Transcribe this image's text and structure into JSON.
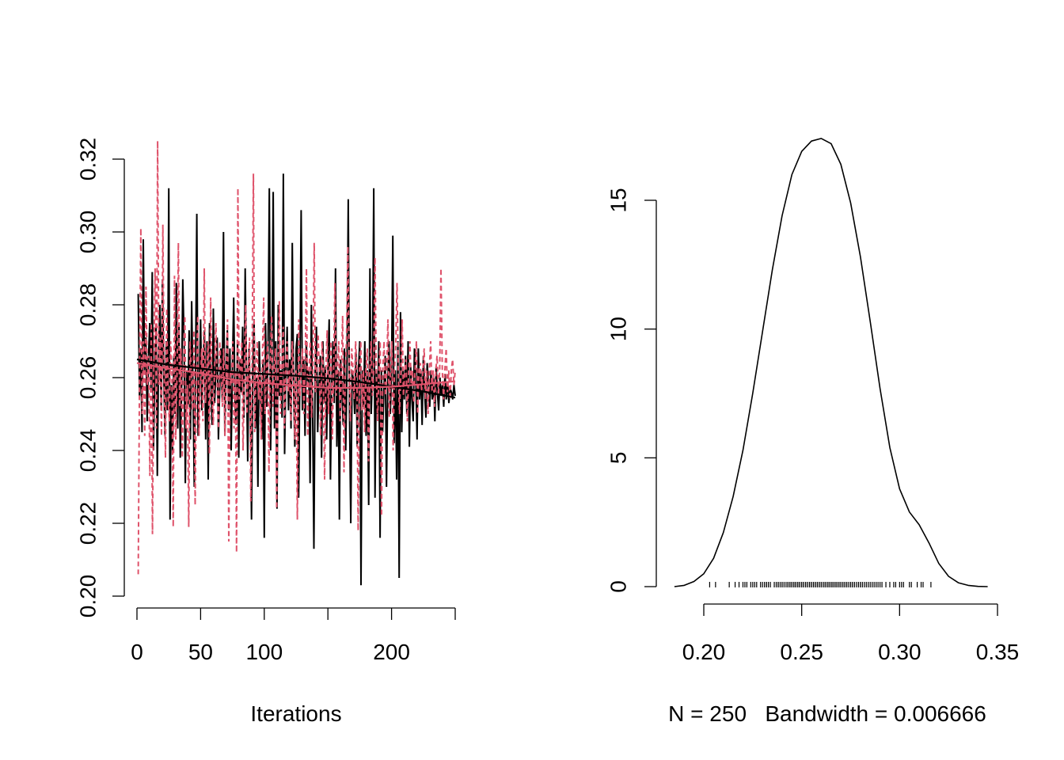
{
  "chart_data": [
    {
      "type": "line",
      "title": "",
      "xlabel": "Iterations",
      "ylabel": "",
      "xlim": [
        0,
        250
      ],
      "ylim": [
        0.2,
        0.32
      ],
      "x_ticks": [
        0,
        50,
        100,
        150,
        200,
        250
      ],
      "x_tick_labels": [
        "0",
        "50",
        "100",
        "",
        "200",
        ""
      ],
      "y_ticks": [
        0.2,
        0.22,
        0.24,
        0.26,
        0.28,
        0.3,
        0.32
      ],
      "y_tick_labels": [
        "0.20",
        "0.22",
        "0.24",
        "0.26",
        "0.28",
        "0.30",
        "0.32"
      ],
      "n_iterations": 250,
      "series": [
        {
          "color": "#000000",
          "line_style": "solid",
          "values": [
            0.283,
            0.255,
            0.268,
            0.245,
            0.298,
            0.262,
            0.271,
            0.248,
            0.265,
            0.275,
            0.257,
            0.289,
            0.24,
            0.262,
            0.274,
            0.233,
            0.266,
            0.28,
            0.251,
            0.287,
            0.262,
            0.244,
            0.27,
            0.251,
            0.312,
            0.221,
            0.258,
            0.24,
            0.266,
            0.25,
            0.286,
            0.246,
            0.275,
            0.238,
            0.255,
            0.287,
            0.27,
            0.231,
            0.262,
            0.252,
            0.273,
            0.243,
            0.281,
            0.257,
            0.23,
            0.262,
            0.305,
            0.244,
            0.258,
            0.276,
            0.251,
            0.264,
            0.273,
            0.243,
            0.27,
            0.232,
            0.275,
            0.26,
            0.247,
            0.279,
            0.253,
            0.262,
            0.271,
            0.243,
            0.257,
            0.268,
            0.254,
            0.3,
            0.244,
            0.262,
            0.273,
            0.251,
            0.268,
            0.24,
            0.262,
            0.282,
            0.253,
            0.247,
            0.27,
            0.238,
            0.265,
            0.256,
            0.274,
            0.249,
            0.29,
            0.262,
            0.237,
            0.268,
            0.255,
            0.221,
            0.262,
            0.276,
            0.246,
            0.26,
            0.23,
            0.27,
            0.257,
            0.243,
            0.265,
            0.216,
            0.275,
            0.252,
            0.268,
            0.312,
            0.24,
            0.262,
            0.311,
            0.246,
            0.27,
            0.224,
            0.28,
            0.255,
            0.262,
            0.249,
            0.316,
            0.239,
            0.262,
            0.274,
            0.251,
            0.265,
            0.246,
            0.297,
            0.258,
            0.241,
            0.268,
            0.272,
            0.227,
            0.262,
            0.306,
            0.251,
            0.265,
            0.244,
            0.27,
            0.259,
            0.262,
            0.231,
            0.28,
            0.251,
            0.213,
            0.262,
            0.274,
            0.245,
            0.258,
            0.266,
            0.238,
            0.27,
            0.253,
            0.263,
            0.243,
            0.262,
            0.276,
            0.232,
            0.258,
            0.27,
            0.253,
            0.29,
            0.241,
            0.262,
            0.221,
            0.265,
            0.256,
            0.247,
            0.268,
            0.24,
            0.262,
            0.309,
            0.25,
            0.22,
            0.262,
            0.259,
            0.25,
            0.267,
            0.241,
            0.262,
            0.27,
            0.203,
            0.262,
            0.252,
            0.27,
            0.244,
            0.262,
            0.225,
            0.29,
            0.25,
            0.262,
            0.312,
            0.227,
            0.262,
            0.25,
            0.27,
            0.216,
            0.262,
            0.245,
            0.257,
            0.266,
            0.23,
            0.258,
            0.27,
            0.25,
            0.262,
            0.299,
            0.242,
            0.262,
            0.232,
            0.27,
            0.205,
            0.278,
            0.245,
            0.262,
            0.254,
            0.266,
            0.25,
            0.27,
            0.241,
            0.263,
            0.254,
            0.248,
            0.268,
            0.261,
            0.243,
            0.268,
            0.254,
            0.262,
            0.247,
            0.266,
            0.256,
            0.249,
            0.264,
            0.258,
            0.252,
            0.262,
            0.254,
            0.26,
            0.248,
            0.263,
            0.256,
            0.251,
            0.26,
            0.255,
            0.258,
            0.252,
            0.261,
            0.254,
            0.259,
            0.253,
            0.257,
            0.256,
            0.254,
            0.258,
            0.255
          ]
        },
        {
          "color": "#DF536B",
          "line_style": "dashed",
          "values": [
            0.206,
            0.262,
            0.301,
            0.25,
            0.27,
            0.244,
            0.285,
            0.258,
            0.266,
            0.233,
            0.275,
            0.217,
            0.262,
            0.29,
            0.246,
            0.325,
            0.258,
            0.271,
            0.244,
            0.302,
            0.262,
            0.238,
            0.279,
            0.255,
            0.248,
            0.27,
            0.262,
            0.219,
            0.288,
            0.243,
            0.262,
            0.297,
            0.252,
            0.268,
            0.238,
            0.262,
            0.277,
            0.246,
            0.258,
            0.219,
            0.27,
            0.262,
            0.251,
            0.273,
            0.225,
            0.262,
            0.277,
            0.244,
            0.258,
            0.268,
            0.248,
            0.29,
            0.253,
            0.262,
            0.27,
            0.239,
            0.282,
            0.256,
            0.247,
            0.262,
            0.275,
            0.258,
            0.246,
            0.27,
            0.262,
            0.252,
            0.268,
            0.244,
            0.262,
            0.276,
            0.215,
            0.262,
            0.258,
            0.27,
            0.246,
            0.262,
            0.212,
            0.312,
            0.254,
            0.262,
            0.27,
            0.24,
            0.262,
            0.28,
            0.25,
            0.262,
            0.271,
            0.226,
            0.262,
            0.316,
            0.245,
            0.262,
            0.27,
            0.254,
            0.262,
            0.243,
            0.266,
            0.282,
            0.25,
            0.262,
            0.27,
            0.234,
            0.262,
            0.277,
            0.252,
            0.262,
            0.268,
            0.224,
            0.262,
            0.281,
            0.25,
            0.262,
            0.274,
            0.246,
            0.262,
            0.27,
            0.256,
            0.262,
            0.248,
            0.27,
            0.262,
            0.243,
            0.262,
            0.221,
            0.276,
            0.255,
            0.262,
            0.268,
            0.25,
            0.262,
            0.29,
            0.244,
            0.262,
            0.27,
            0.249,
            0.262,
            0.297,
            0.256,
            0.262,
            0.272,
            0.262,
            0.244,
            0.27,
            0.262,
            0.232,
            0.262,
            0.273,
            0.25,
            0.262,
            0.27,
            0.243,
            0.262,
            0.286,
            0.255,
            0.262,
            0.27,
            0.248,
            0.262,
            0.277,
            0.234,
            0.262,
            0.27,
            0.296,
            0.262,
            0.248,
            0.268,
            0.262,
            0.254,
            0.27,
            0.262,
            0.218,
            0.262,
            0.27,
            0.251,
            0.262,
            0.245,
            0.262,
            0.268,
            0.237,
            0.262,
            0.27,
            0.255,
            0.262,
            0.293,
            0.262,
            0.248,
            0.262,
            0.27,
            0.222,
            0.262,
            0.27,
            0.255,
            0.262,
            0.276,
            0.249,
            0.262,
            0.27,
            0.24,
            0.262,
            0.268,
            0.286,
            0.262,
            0.25,
            0.262,
            0.276,
            0.255,
            0.262,
            0.265,
            0.248,
            0.262,
            0.27,
            0.258,
            0.262,
            0.253,
            0.262,
            0.27,
            0.25,
            0.262,
            0.264,
            0.256,
            0.262,
            0.268,
            0.254,
            0.262,
            0.25,
            0.262,
            0.27,
            0.256,
            0.262,
            0.252,
            0.262,
            0.266,
            0.255,
            0.262,
            0.29,
            0.262,
            0.254,
            0.262,
            0.268,
            0.256,
            0.262,
            0.254,
            0.262,
            0.265,
            0.258,
            0.262
          ]
        }
      ],
      "smooth_lines": [
        {
          "color": "#000000",
          "x": [
            0,
            25,
            50,
            75,
            100,
            125,
            150,
            175,
            200,
            225,
            250
          ],
          "values": [
            0.265,
            0.2635,
            0.2625,
            0.2615,
            0.261,
            0.2605,
            0.2598,
            0.2588,
            0.2575,
            0.2562,
            0.2545
          ]
        },
        {
          "color": "#DF536B",
          "x": [
            0,
            25,
            50,
            75,
            100,
            125,
            150,
            175,
            200,
            225,
            250
          ],
          "values": [
            0.264,
            0.2625,
            0.2612,
            0.2595,
            0.2585,
            0.2578,
            0.2572,
            0.2572,
            0.2575,
            0.2582,
            0.259
          ]
        }
      ]
    },
    {
      "type": "line",
      "title": "",
      "xlabel": "N = 250   Bandwidth = 0.006666",
      "ylabel": "",
      "xlim": [
        0.18,
        0.35
      ],
      "ylim": [
        0,
        17.4
      ],
      "x_ticks": [
        0.2,
        0.25,
        0.3,
        0.35
      ],
      "x_tick_labels": [
        "0.20",
        "0.25",
        "0.30",
        "0.35"
      ],
      "y_ticks": [
        0,
        5,
        10,
        15
      ],
      "y_tick_labels": [
        "0",
        "5",
        "10",
        "15"
      ],
      "series": [
        {
          "color": "#000000",
          "line_style": "solid",
          "x": [
            0.185,
            0.19,
            0.195,
            0.2,
            0.205,
            0.21,
            0.215,
            0.22,
            0.225,
            0.23,
            0.235,
            0.24,
            0.245,
            0.25,
            0.255,
            0.26,
            0.265,
            0.27,
            0.275,
            0.28,
            0.285,
            0.29,
            0.295,
            0.3,
            0.305,
            0.31,
            0.315,
            0.32,
            0.325,
            0.33,
            0.335,
            0.34,
            0.345
          ],
          "values": [
            0.0,
            0.05,
            0.2,
            0.5,
            1.1,
            2.1,
            3.5,
            5.3,
            7.5,
            9.9,
            12.3,
            14.4,
            16.0,
            16.9,
            17.3,
            17.4,
            17.2,
            16.4,
            14.9,
            12.8,
            10.3,
            7.7,
            5.4,
            3.8,
            2.9,
            2.4,
            1.7,
            0.9,
            0.4,
            0.15,
            0.05,
            0.01,
            0.0
          ]
        }
      ],
      "rug": [
        0.203,
        0.206,
        0.213,
        0.216,
        0.218,
        0.22,
        0.221,
        0.222,
        0.224,
        0.225,
        0.226,
        0.227,
        0.229,
        0.23,
        0.231,
        0.232,
        0.232,
        0.233,
        0.234,
        0.236,
        0.237,
        0.238,
        0.238,
        0.239,
        0.24,
        0.24,
        0.241,
        0.242,
        0.243,
        0.243,
        0.244,
        0.244,
        0.245,
        0.245,
        0.246,
        0.246,
        0.247,
        0.247,
        0.248,
        0.248,
        0.249,
        0.249,
        0.25,
        0.25,
        0.251,
        0.251,
        0.252,
        0.252,
        0.253,
        0.253,
        0.254,
        0.254,
        0.255,
        0.255,
        0.256,
        0.256,
        0.257,
        0.257,
        0.258,
        0.258,
        0.259,
        0.259,
        0.26,
        0.26,
        0.261,
        0.261,
        0.262,
        0.262,
        0.263,
        0.263,
        0.264,
        0.264,
        0.265,
        0.265,
        0.266,
        0.266,
        0.267,
        0.267,
        0.268,
        0.268,
        0.269,
        0.269,
        0.27,
        0.27,
        0.271,
        0.271,
        0.272,
        0.272,
        0.273,
        0.273,
        0.274,
        0.275,
        0.275,
        0.276,
        0.276,
        0.277,
        0.278,
        0.279,
        0.28,
        0.28,
        0.281,
        0.282,
        0.283,
        0.284,
        0.285,
        0.286,
        0.287,
        0.288,
        0.289,
        0.29,
        0.291,
        0.293,
        0.295,
        0.297,
        0.298,
        0.3,
        0.301,
        0.302,
        0.305,
        0.306,
        0.309,
        0.311,
        0.312,
        0.316
      ]
    }
  ]
}
